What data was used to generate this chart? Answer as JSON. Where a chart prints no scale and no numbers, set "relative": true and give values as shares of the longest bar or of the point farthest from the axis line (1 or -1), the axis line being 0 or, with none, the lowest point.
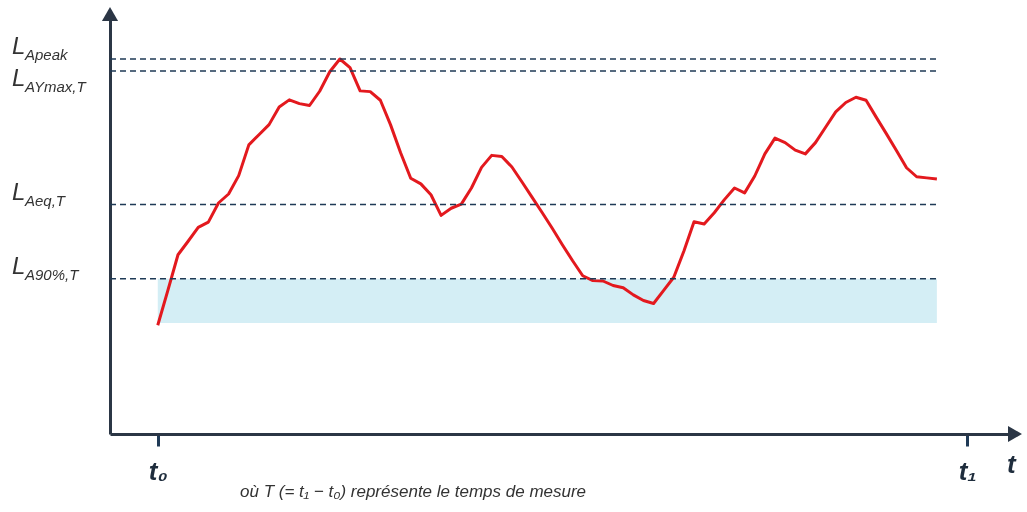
{
  "chart_data": {
    "type": "line",
    "relative": true,
    "xlabel": "t",
    "tick_labels": "x",
    "grid": false,
    "line_style": "solid",
    "categories": [
      "t₀",
      null,
      null,
      null,
      null,
      null,
      null,
      null,
      null,
      null,
      null,
      null,
      null,
      null,
      null,
      null,
      null,
      null,
      null,
      null,
      null,
      null,
      null,
      null,
      null,
      null,
      null,
      null,
      null,
      null,
      null,
      null,
      null,
      null,
      null,
      null,
      null,
      null,
      null,
      null,
      null,
      null,
      null,
      null,
      null,
      null,
      null,
      null,
      null,
      null,
      null,
      null,
      null,
      null,
      null,
      null,
      null,
      null,
      null,
      null,
      null,
      null,
      null,
      null,
      null,
      null,
      null,
      null,
      null,
      null,
      null,
      null,
      null,
      null,
      null,
      null,
      null,
      null,
      null,
      null,
      "t₁"
    ],
    "series": [
      {
        "color": "#e3191e",
        "values": [
          0.29,
          0.383,
          0.478,
          0.514,
          0.551,
          0.565,
          0.616,
          0.64,
          0.689,
          0.771,
          0.798,
          0.825,
          0.872,
          0.891,
          0.881,
          0.876,
          0.914,
          0.966,
          1.0,
          0.977,
          0.915,
          0.913,
          0.89,
          0.825,
          0.75,
          0.682,
          0.667,
          0.638,
          0.583,
          0.602,
          0.613,
          0.656,
          0.711,
          0.743,
          0.74,
          0.712,
          0.672,
          0.631,
          0.59,
          0.548,
          0.504,
          0.462,
          0.422,
          0.409,
          0.408,
          0.396,
          0.39,
          0.371,
          0.356,
          0.348,
          0.383,
          0.418,
          0.488,
          0.566,
          0.56,
          0.59,
          0.625,
          0.656,
          0.643,
          0.688,
          0.747,
          0.789,
          0.777,
          0.757,
          0.747,
          0.777,
          0.818,
          0.859,
          0.884,
          0.898,
          0.89,
          0.845,
          0.801,
          0.756,
          0.71,
          0.686,
          0.683,
          0.68,
          null,
          null,
          null
        ]
      }
    ],
    "ref_lines": [
      {
        "axis": "y",
        "value": 1.0,
        "label": "L$_{Apeak}$",
        "color": "#1f3a56",
        "line_style": "dashed"
      },
      {
        "axis": "y",
        "value": 0.968,
        "label": "L$_{AYmax,T}$",
        "color": "#1f3a56",
        "line_style": "dashed"
      },
      {
        "axis": "y",
        "value": 0.612,
        "label": "L$_{Aeq,T}$",
        "color": "#1f3a56",
        "line_style": "dashed"
      },
      {
        "axis": "y",
        "value": 0.414,
        "label": "L$_{A90%,T}$",
        "color": "#1f3a56",
        "line_style": "dashed"
      }
    ],
    "bands": [
      {
        "axis": "y",
        "from": 0.296,
        "to": 0.414,
        "color": "#d4eef5"
      }
    ],
    "annotations": [
      "où T (= t₁ − t₀) représente le temps de mesure"
    ]
  }
}
